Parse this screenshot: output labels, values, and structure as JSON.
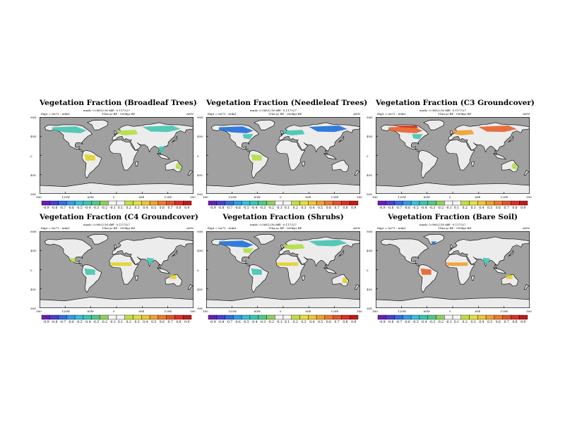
{
  "page": {
    "background": "#ffffff"
  },
  "map_style": {
    "ocean": "#a0a0a0",
    "land": "#ececec",
    "coast": "#000000"
  },
  "x_axis_labels": [
    "180",
    "120W",
    "60W",
    "0",
    "60E",
    "120E",
    "180"
  ],
  "y_axis_labels": [
    "90N",
    "45N",
    "0",
    "45S",
    "90S"
  ],
  "panels": [
    {
      "title": "Vegetation Fraction (Broadleaf Trees)",
      "sub1": "mask: 0.0682216 diff: -0.117327",
      "sub2": "11ka yr BP - 000kyr BP",
      "expt": "Expt = tei71 - teila1",
      "season": "ANN",
      "colorbar_labels": [
        "-0.9",
        "-0.8",
        "-0.7",
        "-0.6",
        "-0.5",
        "-0.4",
        "-0.3",
        "-0.2",
        "-0.1",
        "0.1",
        "0.2",
        "0.3",
        "0.4",
        "0.5",
        "0.6",
        "0.7",
        "0.8",
        "0.9"
      ],
      "patches": [
        {
          "color": "#45c4b0",
          "region": "na_boreal"
        },
        {
          "color": "#b2df44",
          "region": "eu_central"
        },
        {
          "color": "#45c4b0",
          "region": "siberia"
        },
        {
          "color": "#e3d32a",
          "region": "amazon"
        },
        {
          "color": "#45c4b0",
          "region": "se_asia"
        },
        {
          "color": "#b2df44",
          "region": "australia_east"
        }
      ]
    },
    {
      "title": "Vegetation Fraction (Needleleaf Trees)",
      "sub1": "mask: 0.0682216 diff: -0.117327",
      "sub2": "11ka yr BP - 000kyr BP",
      "expt": "Expt = tei71 - teila1",
      "season": "ANN",
      "colorbar_labels": [
        "-0.9",
        "-0.8",
        "-0.7",
        "-0.6",
        "-0.5",
        "-0.4",
        "-0.3",
        "-0.2",
        "-0.1",
        "0.1",
        "0.2",
        "0.3",
        "0.4",
        "0.5",
        "0.6",
        "0.7",
        "0.8",
        "0.9"
      ],
      "patches": [
        {
          "color": "#1e6fd9",
          "region": "na_boreal"
        },
        {
          "color": "#45c4b0",
          "region": "na_east"
        },
        {
          "color": "#1e6fd9",
          "region": "siberia"
        },
        {
          "color": "#45c4b0",
          "region": "eu_central"
        },
        {
          "color": "#b2df44",
          "region": "amazon"
        }
      ]
    },
    {
      "title": "Vegetation Fraction (C3 Groundcover)",
      "sub1": "mask: 0.0682216 diff: -0.117327",
      "sub2": "11ka yr BP - 000kyr BP",
      "expt": "Expt = tei71 - teila1",
      "season": "ANN",
      "colorbar_labels": [
        "-0.9",
        "-0.8",
        "-0.7",
        "-0.6",
        "-0.5",
        "-0.4",
        "-0.3",
        "-0.2",
        "-0.1",
        "0.1",
        "0.2",
        "0.3",
        "0.4",
        "0.5",
        "0.6",
        "0.7",
        "0.8",
        "0.9"
      ],
      "patches": [
        {
          "color": "#e8622a",
          "region": "na_boreal"
        },
        {
          "color": "#d42e1e",
          "region": "arctic_na"
        },
        {
          "color": "#e8622a",
          "region": "siberia"
        },
        {
          "color": "#f0a030",
          "region": "eu_central"
        },
        {
          "color": "#b2df44",
          "region": "australia_east"
        },
        {
          "color": "#45c4b0",
          "region": "na_east"
        }
      ]
    },
    {
      "title": "Vegetation Fraction (C4 Groundcover)",
      "sub1": "mask: 0.0682216 diff: -0.117327",
      "sub2": "11ka yr BP - 000kyr BP",
      "expt": "Expt = tei71 - teila1",
      "season": "ANN",
      "colorbar_labels": [
        "-0.9",
        "-0.8",
        "-0.7",
        "-0.6",
        "-0.5",
        "-0.4",
        "-0.3",
        "-0.2",
        "-0.1",
        "0.1",
        "0.2",
        "0.3",
        "0.4",
        "0.5",
        "0.6",
        "0.7",
        "0.8",
        "0.9"
      ],
      "patches": [
        {
          "color": "#e3d32a",
          "region": "sahel"
        },
        {
          "color": "#45c4b0",
          "region": "india"
        },
        {
          "color": "#45c4b0",
          "region": "amazon"
        },
        {
          "color": "#e3d32a",
          "region": "australia_north"
        },
        {
          "color": "#b2df44",
          "region": "mexico"
        }
      ]
    },
    {
      "title": "Vegetation Fraction (Shrubs)",
      "sub1": "mask: 0.0682216 diff: -0.117327",
      "sub2": "11ka yr BP - 000kyr BP",
      "expt": "Expt = tei71 - teila1",
      "season": "ANN",
      "colorbar_labels": [
        "-0.9",
        "-0.8",
        "-0.7",
        "-0.6",
        "-0.5",
        "-0.4",
        "-0.3",
        "-0.2",
        "-0.1",
        "0.1",
        "0.2",
        "0.3",
        "0.4",
        "0.5",
        "0.6",
        "0.7",
        "0.8",
        "0.9"
      ],
      "patches": [
        {
          "color": "#1e6fd9",
          "region": "na_boreal"
        },
        {
          "color": "#b2df44",
          "region": "na_east"
        },
        {
          "color": "#45c4b0",
          "region": "siberia"
        },
        {
          "color": "#b2df44",
          "region": "eu_central"
        },
        {
          "color": "#e3d32a",
          "region": "sahel"
        },
        {
          "color": "#e3d32a",
          "region": "australia_east"
        },
        {
          "color": "#45c4b0",
          "region": "amazon"
        }
      ]
    },
    {
      "title": "Vegetation Fraction (Bare Soil)",
      "sub1": "mask: 0.0682216 diff: -0.117327",
      "sub2": "11ka yr BP - 000kyr BP",
      "expt": "Expt = tei71 - teila1",
      "season": "ANN",
      "colorbar_labels": [
        "-0.9",
        "-0.8",
        "-0.7",
        "-0.6",
        "-0.5",
        "-0.4",
        "-0.3",
        "-0.2",
        "-0.1",
        "0.1",
        "0.2",
        "0.3",
        "0.4",
        "0.5",
        "0.6",
        "0.7",
        "0.8",
        "0.9"
      ],
      "patches": [
        {
          "color": "#1e6fd9",
          "region": "greenland_s"
        },
        {
          "color": "#e8622a",
          "region": "amazon"
        },
        {
          "color": "#f0a030",
          "region": "sahel"
        },
        {
          "color": "#45c4b0",
          "region": "india"
        },
        {
          "color": "#e3d32a",
          "region": "australia_north"
        }
      ]
    }
  ],
  "colorbar_colors": [
    "#6a1fb4",
    "#4a3fd2",
    "#2f6ee6",
    "#2f9ee8",
    "#35c0e0",
    "#35c8b4",
    "#4ecb86",
    "#8fd25a",
    "#f5f5f5",
    "#f5f5f5",
    "#c6df3e",
    "#e6e03a",
    "#f0c734",
    "#f2a22e",
    "#ef7a2a",
    "#e8522a",
    "#df2e24",
    "#c01a1a"
  ]
}
